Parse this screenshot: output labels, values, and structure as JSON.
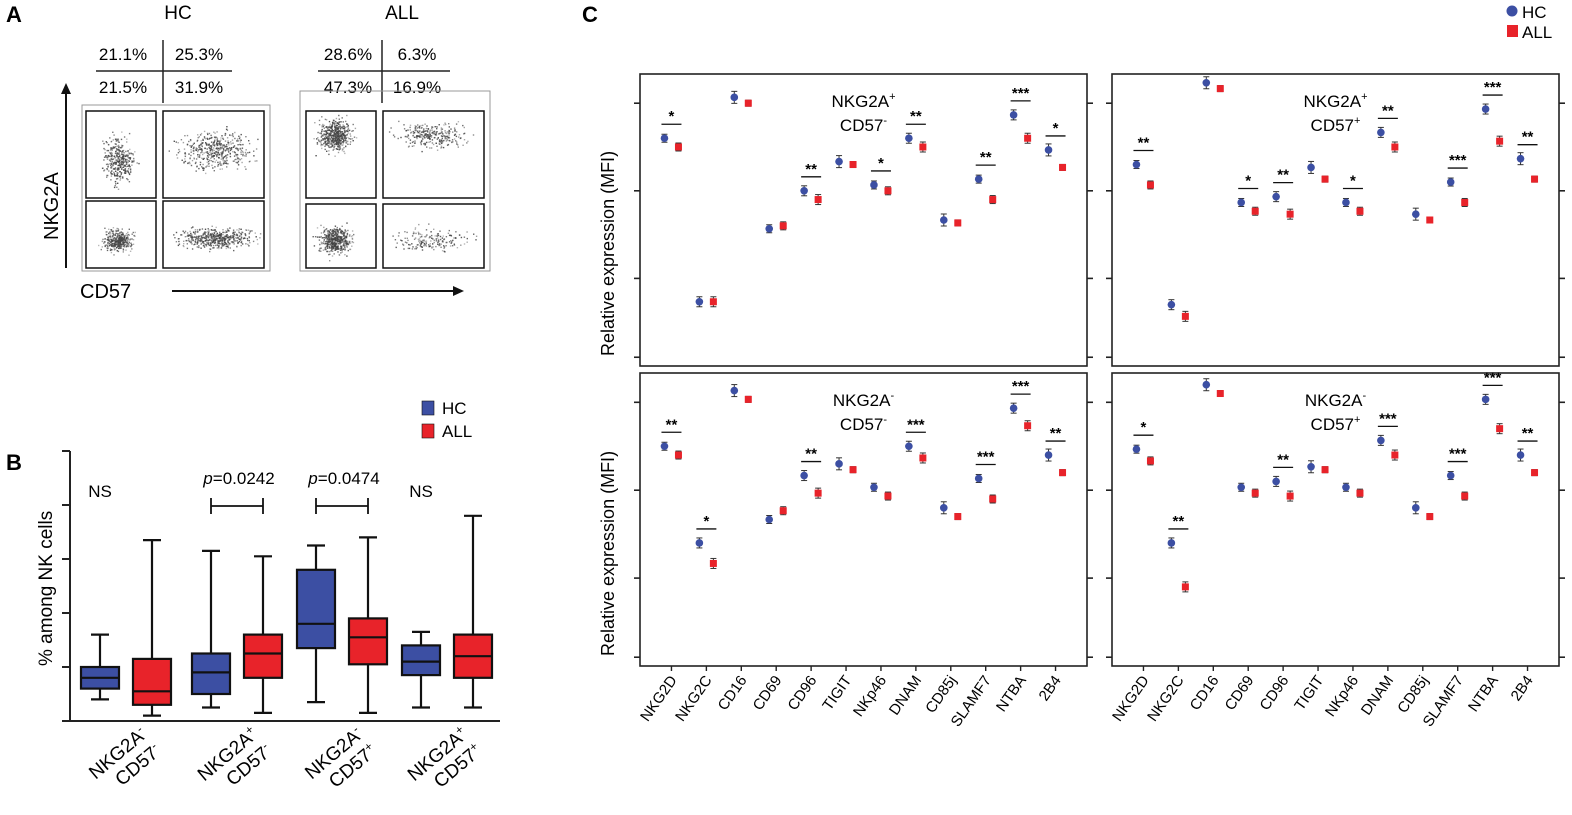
{
  "colors": {
    "hc": "#3c4fa3",
    "all": "#e8232a",
    "axis": "#222222",
    "dot": "#444444"
  },
  "panel_a": {
    "letter": "A",
    "ylabel": "NKG2A",
    "xlabel": "CD57",
    "plots": [
      {
        "title": "HC",
        "quadrants": {
          "top_left": "21.1%",
          "top_right": "25.3%",
          "bottom_left": "21.5%",
          "bottom_right": "31.9%"
        }
      },
      {
        "title": "ALL",
        "quadrants": {
          "top_left": "28.6%",
          "top_right": "6.3%",
          "bottom_left": "47.3%",
          "bottom_right": "16.9%"
        }
      }
    ]
  },
  "panel_b": {
    "letter": "B"
  },
  "panel_c": {
    "letter": "C"
  },
  "chart_data": [
    {
      "panel": "B",
      "type": "boxplot",
      "ylabel": "% among NK cells",
      "ylim": [
        0,
        100
      ],
      "legend": [
        "HC",
        "ALL"
      ],
      "legend_position": "top-right",
      "groups": [
        {
          "label_line1": "NKG2A",
          "sup1": "-",
          "label_line2": "CD57",
          "sup2": "-",
          "annotation": "NS",
          "annotation_p": "",
          "bracket": false,
          "boxes": [
            {
              "series": "HC",
              "min": 8,
              "q1": 12,
              "median": 16,
              "q3": 20,
              "max": 32
            },
            {
              "series": "ALL",
              "min": 2,
              "q1": 6,
              "median": 11,
              "q3": 23,
              "max": 67
            }
          ]
        },
        {
          "label_line1": "NKG2A",
          "sup1": "+",
          "label_line2": "CD57",
          "sup2": "-",
          "annotation": "=0.0242",
          "annotation_p": "p",
          "bracket": true,
          "boxes": [
            {
              "series": "HC",
              "min": 5,
              "q1": 10,
              "median": 18,
              "q3": 25,
              "max": 63
            },
            {
              "series": "ALL",
              "min": 3,
              "q1": 16,
              "median": 25,
              "q3": 32,
              "max": 61
            }
          ]
        },
        {
          "label_line1": "NKG2A",
          "sup1": "-",
          "label_line2": "CD57",
          "sup2": "+",
          "annotation": "=0.0474",
          "annotation_p": "p",
          "bracket": true,
          "boxes": [
            {
              "series": "HC",
              "min": 7,
              "q1": 27,
              "median": 36,
              "q3": 56,
              "max": 65
            },
            {
              "series": "ALL",
              "min": 3,
              "q1": 21,
              "median": 31,
              "q3": 38,
              "max": 68
            }
          ]
        },
        {
          "label_line1": "NKG2A",
          "sup1": "+",
          "label_line2": "CD57",
          "sup2": "+",
          "annotation": "NS",
          "annotation_p": "",
          "bracket": false,
          "boxes": [
            {
              "series": "HC",
              "min": 5,
              "q1": 17,
              "median": 22,
              "q3": 28,
              "max": 33
            },
            {
              "series": "ALL",
              "min": 5,
              "q1": 16,
              "median": 24,
              "q3": 32,
              "max": 76
            }
          ]
        }
      ]
    },
    {
      "panel": "C",
      "type": "scatter",
      "ylabel": "Relative expression (MFI)",
      "yscale": "log",
      "ylim": [
        0,
        100
      ],
      "legend": [
        "HC",
        "ALL"
      ],
      "legend_position": "top-right",
      "categories": [
        "NKG2D",
        "NKG2C",
        "CD16",
        "CD69",
        "CD96",
        "TIGIT",
        "NKp46",
        "DNAM",
        "CD85j",
        "SLAMF7",
        "NTBA",
        "2B4"
      ],
      "subplots": [
        {
          "title_l1": "NKG2A",
          "sup1": "+",
          "title_l2": "CD57",
          "sup2": "-",
          "hc": [
            78,
            22,
            92,
            47,
            60,
            70,
            62,
            78,
            50,
            64,
            86,
            74
          ],
          "all": [
            75,
            22,
            90,
            48,
            57,
            69,
            60,
            75,
            49,
            57,
            78,
            68
          ],
          "sig": [
            "*",
            "",
            "",
            "",
            "**",
            "",
            "*",
            "**",
            "",
            "**",
            "***",
            "*"
          ]
        },
        {
          "title_l1": "NKG2A",
          "sup1": "+",
          "title_l2": "CD57",
          "sup2": "+",
          "hc": [
            69,
            21,
            97,
            56,
            58,
            68,
            56,
            80,
            52,
            63,
            88,
            71
          ],
          "all": [
            62,
            17,
            95,
            53,
            52,
            64,
            53,
            75,
            50,
            56,
            77,
            64
          ],
          "sig": [
            "**",
            "",
            "",
            "*",
            "**",
            "",
            "*",
            "**",
            "",
            "***",
            "***",
            "**"
          ]
        },
        {
          "title_l1": "NKG2A",
          "sup1": "-",
          "title_l2": "CD57",
          "sup2": "-",
          "hc": [
            75,
            42,
            94,
            50,
            65,
            69,
            61,
            75,
            54,
            64,
            88,
            72
          ],
          "all": [
            72,
            35,
            91,
            53,
            59,
            67,
            58,
            71,
            51,
            57,
            82,
            66
          ],
          "sig": [
            "**",
            "*",
            "",
            "",
            "**",
            "",
            "",
            "***",
            "",
            "***",
            "***",
            "**"
          ]
        },
        {
          "title_l1": "NKG2A",
          "sup1": "-",
          "title_l2": "CD57",
          "sup2": "+",
          "hc": [
            74,
            42,
            96,
            61,
            63,
            68,
            61,
            77,
            54,
            65,
            91,
            72
          ],
          "all": [
            70,
            27,
            93,
            59,
            58,
            67,
            59,
            72,
            51,
            58,
            81,
            66
          ],
          "sig": [
            "*",
            "**",
            "",
            "",
            "**",
            "",
            "",
            "***",
            "",
            "***",
            "***",
            "**"
          ]
        }
      ]
    }
  ]
}
